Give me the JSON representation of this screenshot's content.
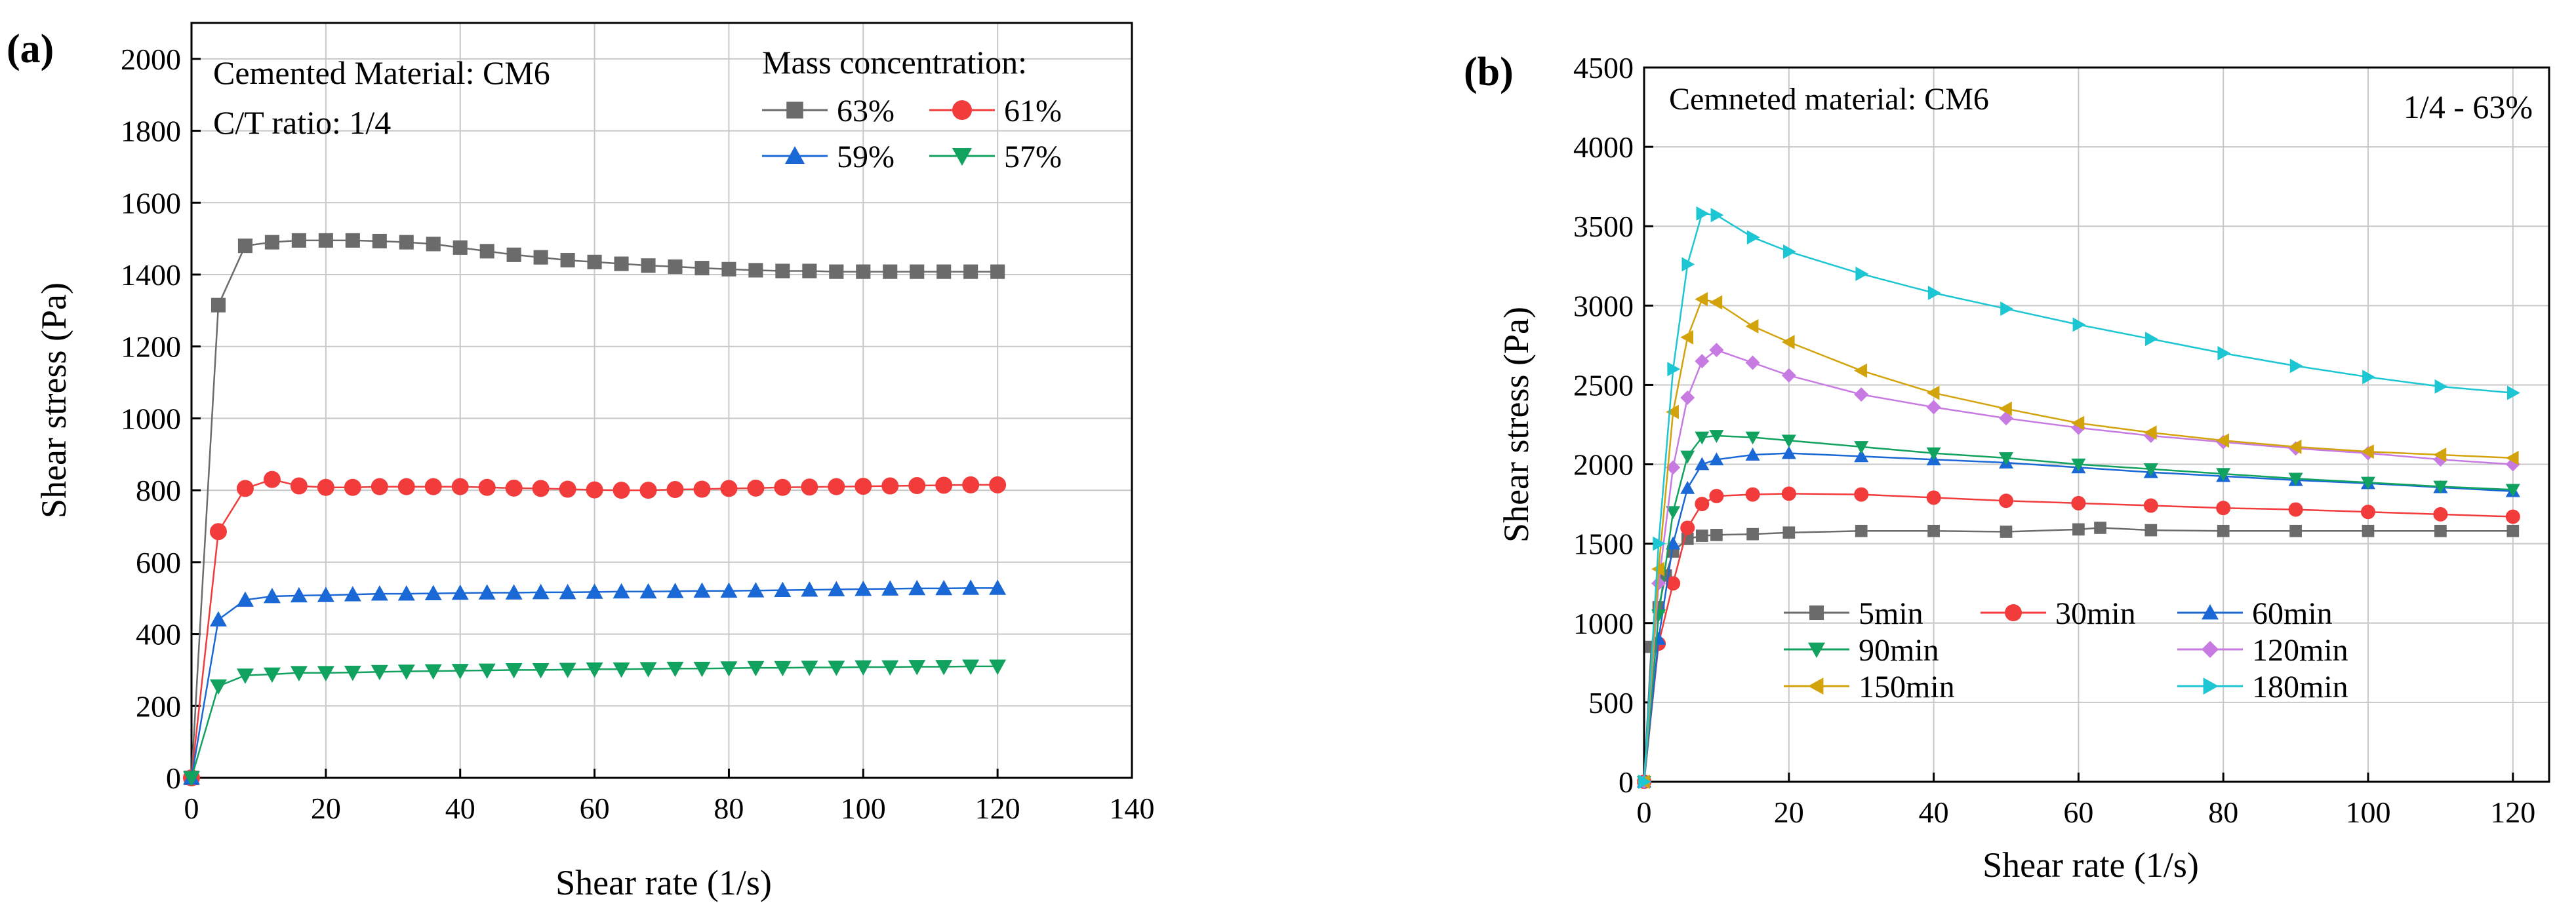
{
  "chart_data": [
    {
      "type": "line",
      "panel_label": "(a)",
      "notes": [
        "Cemented Material: CM6",
        "C/T ratio: 1/4"
      ],
      "legend_title": "Mass concentration:",
      "xlabel": "Shear rate (1/s)",
      "ylabel": "Shear stress (Pa)",
      "xlim": [
        0,
        140
      ],
      "ylim": [
        0,
        2100
      ],
      "xticks": [
        0,
        20,
        40,
        60,
        80,
        100,
        120,
        140
      ],
      "yticks": [
        0,
        200,
        400,
        600,
        800,
        1000,
        1200,
        1400,
        1600,
        1800,
        2000
      ],
      "grid": true,
      "legend_position": "top-right",
      "x": [
        0,
        4,
        8,
        12,
        16,
        20,
        24,
        28,
        32,
        36,
        40,
        44,
        48,
        52,
        56,
        60,
        64,
        68,
        72,
        76,
        80,
        84,
        88,
        92,
        96,
        100,
        104,
        108,
        112,
        116,
        120
      ],
      "series": [
        {
          "name": "63%",
          "color": "#6b6b6b",
          "marker": "square",
          "values": [
            0,
            1315,
            1480,
            1490,
            1495,
            1495,
            1495,
            1493,
            1490,
            1485,
            1475,
            1465,
            1455,
            1448,
            1440,
            1435,
            1430,
            1425,
            1422,
            1418,
            1415,
            1412,
            1410,
            1410,
            1408,
            1408,
            1408,
            1408,
            1408,
            1408,
            1408
          ]
        },
        {
          "name": "61%",
          "color": "#f23c3c",
          "marker": "circle",
          "values": [
            0,
            685,
            805,
            830,
            812,
            808,
            808,
            810,
            810,
            810,
            810,
            808,
            806,
            805,
            803,
            801,
            800,
            800,
            802,
            803,
            805,
            806,
            808,
            809,
            810,
            811,
            812,
            813,
            814,
            815,
            815
          ]
        },
        {
          "name": "59%",
          "color": "#1a68d6",
          "marker": "triangle-up",
          "values": [
            0,
            440,
            495,
            505,
            507,
            508,
            510,
            512,
            512,
            513,
            514,
            515,
            515,
            516,
            516,
            517,
            518,
            518,
            519,
            520,
            520,
            521,
            522,
            523,
            524,
            525,
            526,
            527,
            527,
            528,
            528
          ]
        },
        {
          "name": "57%",
          "color": "#10a25e",
          "marker": "triangle-down",
          "values": [
            0,
            255,
            285,
            288,
            292,
            292,
            293,
            295,
            296,
            297,
            298,
            299,
            300,
            300,
            301,
            302,
            302,
            303,
            304,
            304,
            305,
            306,
            306,
            307,
            307,
            308,
            308,
            309,
            309,
            310,
            310
          ]
        }
      ]
    },
    {
      "type": "line",
      "panel_label": "(b)",
      "notes": [
        "Cemneted material: CM6",
        "1/4 - 63%"
      ],
      "xlabel": "Shear rate (1/s)",
      "ylabel": "Shear stress (Pa)",
      "xlim": [
        0,
        125
      ],
      "ylim": [
        0,
        4500
      ],
      "xticks": [
        0,
        20,
        40,
        60,
        80,
        100,
        120
      ],
      "yticks": [
        0,
        500,
        1000,
        1500,
        2000,
        2500,
        3000,
        3500,
        4000,
        4500
      ],
      "grid": true,
      "legend_position": "bottom-right",
      "series": [
        {
          "name": "5min",
          "color": "#6b6b6b",
          "marker": "square",
          "points": [
            [
              0,
              0
            ],
            [
              1,
              850
            ],
            [
              2,
              1100
            ],
            [
              3,
              1300
            ],
            [
              4,
              1450
            ],
            [
              6,
              1530
            ],
            [
              8,
              1550
            ],
            [
              10,
              1555
            ],
            [
              15,
              1560
            ],
            [
              20,
              1570
            ],
            [
              30,
              1580
            ],
            [
              40,
              1580
            ],
            [
              50,
              1575
            ],
            [
              60,
              1590
            ],
            [
              63,
              1600
            ],
            [
              70,
              1585
            ],
            [
              80,
              1580
            ],
            [
              90,
              1580
            ],
            [
              100,
              1580
            ],
            [
              110,
              1580
            ],
            [
              120,
              1580
            ]
          ]
        },
        {
          "name": "30min",
          "color": "#f23c3c",
          "marker": "circle",
          "points": [
            [
              0,
              0
            ],
            [
              2,
              870
            ],
            [
              4,
              1250
            ],
            [
              6,
              1600
            ],
            [
              8,
              1750
            ],
            [
              10,
              1800
            ],
            [
              15,
              1810
            ],
            [
              20,
              1815
            ],
            [
              30,
              1810
            ],
            [
              40,
              1790
            ],
            [
              50,
              1770
            ],
            [
              60,
              1755
            ],
            [
              70,
              1740
            ],
            [
              80,
              1725
            ],
            [
              90,
              1715
            ],
            [
              100,
              1700
            ],
            [
              110,
              1685
            ],
            [
              120,
              1670
            ]
          ]
        },
        {
          "name": "60min",
          "color": "#1a68d6",
          "marker": "triangle-up",
          "points": [
            [
              0,
              0
            ],
            [
              2,
              900
            ],
            [
              4,
              1500
            ],
            [
              6,
              1850
            ],
            [
              8,
              2000
            ],
            [
              10,
              2030
            ],
            [
              15,
              2060
            ],
            [
              20,
              2070
            ],
            [
              30,
              2050
            ],
            [
              40,
              2030
            ],
            [
              50,
              2010
            ],
            [
              60,
              1980
            ],
            [
              70,
              1950
            ],
            [
              80,
              1925
            ],
            [
              90,
              1900
            ],
            [
              100,
              1880
            ],
            [
              110,
              1855
            ],
            [
              120,
              1830
            ]
          ]
        },
        {
          "name": "90min",
          "color": "#10a25e",
          "marker": "triangle-down",
          "points": [
            [
              0,
              0
            ],
            [
              2,
              1050
            ],
            [
              4,
              1700
            ],
            [
              6,
              2050
            ],
            [
              8,
              2170
            ],
            [
              10,
              2180
            ],
            [
              15,
              2170
            ],
            [
              20,
              2150
            ],
            [
              30,
              2110
            ],
            [
              40,
              2070
            ],
            [
              50,
              2040
            ],
            [
              60,
              2000
            ],
            [
              70,
              1970
            ],
            [
              80,
              1940
            ],
            [
              90,
              1910
            ],
            [
              100,
              1885
            ],
            [
              110,
              1860
            ],
            [
              120,
              1840
            ]
          ]
        },
        {
          "name": "120min",
          "color": "#c77be2",
          "marker": "diamond",
          "points": [
            [
              0,
              0
            ],
            [
              2,
              1250
            ],
            [
              4,
              1980
            ],
            [
              6,
              2420
            ],
            [
              8,
              2650
            ],
            [
              10,
              2720
            ],
            [
              15,
              2640
            ],
            [
              20,
              2560
            ],
            [
              30,
              2440
            ],
            [
              40,
              2360
            ],
            [
              50,
              2290
            ],
            [
              60,
              2230
            ],
            [
              70,
              2180
            ],
            [
              80,
              2140
            ],
            [
              90,
              2100
            ],
            [
              100,
              2070
            ],
            [
              110,
              2030
            ],
            [
              120,
              2000
            ]
          ]
        },
        {
          "name": "150min",
          "color": "#d3a30c",
          "marker": "triangle-left",
          "points": [
            [
              0,
              0
            ],
            [
              2,
              1340
            ],
            [
              4,
              2330
            ],
            [
              6,
              2800
            ],
            [
              8,
              3040
            ],
            [
              10,
              3020
            ],
            [
              15,
              2870
            ],
            [
              20,
              2770
            ],
            [
              30,
              2590
            ],
            [
              40,
              2450
            ],
            [
              50,
              2350
            ],
            [
              60,
              2260
            ],
            [
              70,
              2200
            ],
            [
              80,
              2150
            ],
            [
              90,
              2110
            ],
            [
              100,
              2080
            ],
            [
              110,
              2060
            ],
            [
              120,
              2040
            ]
          ]
        },
        {
          "name": "180min",
          "color": "#1cc6d2",
          "marker": "triangle-right",
          "points": [
            [
              0,
              0
            ],
            [
              2,
              1500
            ],
            [
              4,
              2600
            ],
            [
              6,
              3260
            ],
            [
              8,
              3580
            ],
            [
              10,
              3570
            ],
            [
              15,
              3430
            ],
            [
              20,
              3340
            ],
            [
              30,
              3200
            ],
            [
              40,
              3080
            ],
            [
              50,
              2980
            ],
            [
              60,
              2880
            ],
            [
              70,
              2790
            ],
            [
              80,
              2700
            ],
            [
              90,
              2620
            ],
            [
              100,
              2550
            ],
            [
              110,
              2490
            ],
            [
              120,
              2450
            ]
          ]
        }
      ]
    }
  ]
}
